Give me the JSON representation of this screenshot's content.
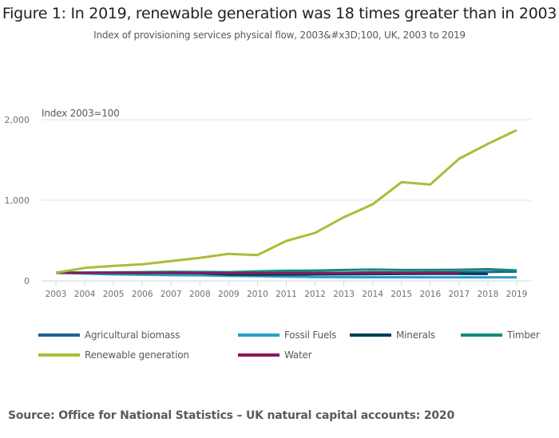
{
  "header": {
    "title": "Figure 1: In 2019, renewable generation was 18 times greater than in 2003",
    "subtitle": "Index of provisioning services physical flow, 2003&#x3D;100, UK, 2003 to 2019"
  },
  "source": "Source: Office for National Statistics – UK natural capital accounts: 2020",
  "chart_data": {
    "type": "line",
    "title": "Figure 1: In 2019, renewable generation was 18 times greater than in 2003",
    "subtitle": "Index of provisioning services physical flow, 2003&#x3D;100, UK, 2003 to 2019",
    "xlabel": "",
    "ylabel": "Index 2003=100",
    "ylim": [
      0,
      2000
    ],
    "yticks": [
      0,
      1000,
      2000
    ],
    "ytick_labels": [
      "0",
      "1,000",
      "2,000"
    ],
    "grid": true,
    "legend_position": "bottom",
    "x": [
      "2003",
      "2004",
      "2005",
      "2006",
      "2007",
      "2008",
      "2009",
      "2010",
      "2011",
      "2012",
      "2013",
      "2014",
      "2015",
      "2016",
      "2017",
      "2018",
      "2019"
    ],
    "series": [
      {
        "name": "Agricultural biomass",
        "color": "#206095",
        "values": [
          100,
          98,
          97,
          96,
          97,
          95,
          93,
          98,
          100,
          98,
          100,
          105,
          103,
          104,
          107,
          110,
          115
        ]
      },
      {
        "name": "Fossil Fuels",
        "color": "#27a0cc",
        "values": [
          100,
          90,
          80,
          75,
          70,
          68,
          62,
          58,
          52,
          48,
          46,
          45,
          45,
          44,
          44,
          44,
          44
        ]
      },
      {
        "name": "Minerals",
        "color": "#003c57",
        "values": [
          100,
          100,
          100,
          98,
          100,
          95,
          78,
          75,
          78,
          80,
          82,
          83,
          85,
          86,
          86,
          85,
          null
        ]
      },
      {
        "name": "Timber",
        "color": "#118c7b",
        "values": [
          100,
          102,
          105,
          108,
          112,
          110,
          108,
          118,
          125,
          128,
          135,
          140,
          135,
          135,
          138,
          145,
          130
        ]
      },
      {
        "name": "Renewable generation",
        "color": "#a8bd3a",
        "values": [
          100,
          160,
          185,
          205,
          245,
          285,
          335,
          320,
          495,
          595,
          790,
          950,
          1225,
          1195,
          1515,
          1700,
          1870
        ]
      },
      {
        "name": "Water",
        "color": "#871a5b",
        "values": [
          100,
          100,
          100,
          100,
          100,
          98,
          96,
          95,
          95,
          95,
          96,
          98,
          98,
          98,
          100,
          null,
          null
        ]
      }
    ]
  },
  "legend": {
    "rows": [
      [
        {
          "label": "Agricultural biomass",
          "color": "#206095"
        },
        {
          "label": "Fossil Fuels",
          "color": "#27a0cc"
        },
        {
          "label": "Minerals",
          "color": "#003c57"
        },
        {
          "label": "Timber",
          "color": "#118c7b"
        }
      ],
      [
        {
          "label": "Renewable generation",
          "color": "#a8bd3a"
        },
        {
          "label": "Water",
          "color": "#871a5b"
        }
      ]
    ]
  }
}
